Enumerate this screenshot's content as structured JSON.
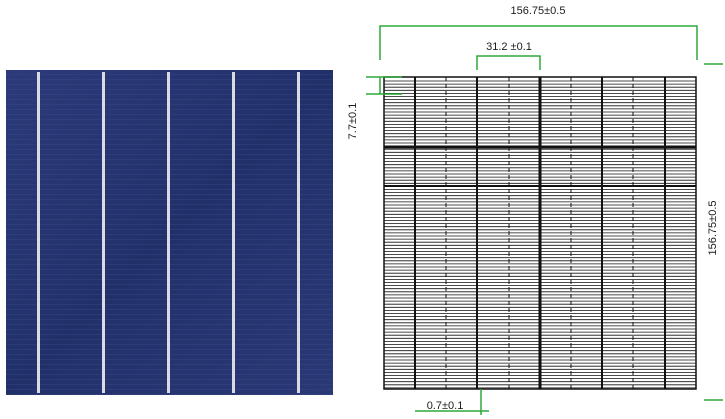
{
  "photo": {
    "alt": "polycrystalline solar cell photograph"
  },
  "drawing": {
    "total_width": "156.75±0.5",
    "total_height": "156.75±0.5",
    "busbar_pitch": "31.2  ±0.1",
    "edge_offset": "7.7±0.1",
    "busbar_width": "0.7±0.1"
  },
  "colors": {
    "dimension_line": "#2fa83a",
    "cell_blue": "#24306a",
    "busbar": "#d8dbe4",
    "grid_line": "#111111"
  }
}
